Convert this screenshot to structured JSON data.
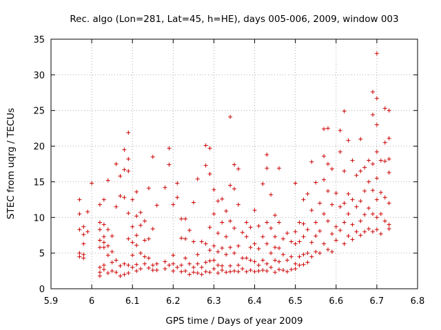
{
  "chart_data": {
    "type": "scatter",
    "title": "Rec. algo (Lon=281, Lat=45, h=HE), days 005-006, 2009, window 003",
    "xlabel": "GPS time / Days of year 2009",
    "ylabel": "STEC from uqrg / TECUs",
    "xlim": [
      5.9,
      6.8
    ],
    "ylim": [
      0,
      35
    ],
    "xticks": [
      "5.9",
      "6",
      "6.1",
      "6.2",
      "6.3",
      "6.4",
      "6.5",
      "6.6",
      "6.7",
      "6.8"
    ],
    "yticks": [
      "0",
      "5",
      "10",
      "15",
      "20",
      "25",
      "30",
      "35"
    ],
    "grid": true,
    "marker": "plus",
    "color": "#cc0000",
    "points": [
      [
        5.97,
        12.5
      ],
      [
        5.97,
        10.5
      ],
      [
        5.97,
        8.3
      ],
      [
        5.97,
        5.0
      ],
      [
        5.97,
        4.5
      ],
      [
        5.98,
        8.7
      ],
      [
        5.98,
        7.6
      ],
      [
        5.98,
        6.3
      ],
      [
        5.98,
        4.3
      ],
      [
        5.98,
        4.8
      ],
      [
        5.99,
        10.8
      ],
      [
        5.99,
        8.0
      ],
      [
        6.0,
        14.8
      ],
      [
        6.02,
        11.8
      ],
      [
        6.02,
        9.3
      ],
      [
        6.02,
        8.3
      ],
      [
        6.02,
        6.8
      ],
      [
        6.02,
        5.8
      ],
      [
        6.02,
        3.0
      ],
      [
        6.02,
        2.3
      ],
      [
        6.02,
        1.8
      ],
      [
        6.03,
        12.5
      ],
      [
        6.03,
        9.0
      ],
      [
        6.03,
        7.3
      ],
      [
        6.03,
        6.5
      ],
      [
        6.03,
        5.8
      ],
      [
        6.03,
        3.3
      ],
      [
        6.03,
        2.7
      ],
      [
        6.04,
        15.2
      ],
      [
        6.04,
        8.3
      ],
      [
        6.04,
        6.0
      ],
      [
        6.04,
        4.7
      ],
      [
        6.04,
        2.2
      ],
      [
        6.05,
        7.4
      ],
      [
        6.05,
        5.2
      ],
      [
        6.05,
        3.7
      ],
      [
        6.05,
        2.5
      ],
      [
        6.06,
        17.5
      ],
      [
        6.06,
        11.5
      ],
      [
        6.06,
        4.0
      ],
      [
        6.06,
        2.3
      ],
      [
        6.07,
        15.8
      ],
      [
        6.07,
        13.0
      ],
      [
        6.07,
        3.2
      ],
      [
        6.07,
        1.8
      ],
      [
        6.08,
        19.5
      ],
      [
        6.08,
        16.7
      ],
      [
        6.08,
        12.8
      ],
      [
        6.08,
        3.5
      ],
      [
        6.08,
        2.0
      ],
      [
        6.09,
        21.9
      ],
      [
        6.09,
        18.2
      ],
      [
        6.09,
        16.5
      ],
      [
        6.09,
        10.6
      ],
      [
        6.09,
        7.0
      ],
      [
        6.09,
        3.3
      ],
      [
        6.09,
        2.2
      ],
      [
        6.1,
        12.5
      ],
      [
        6.1,
        8.7
      ],
      [
        6.1,
        6.5
      ],
      [
        6.1,
        4.7
      ],
      [
        6.1,
        3.0
      ],
      [
        6.11,
        13.6
      ],
      [
        6.11,
        10.2
      ],
      [
        6.11,
        7.5
      ],
      [
        6.11,
        6.1
      ],
      [
        6.11,
        3.4
      ],
      [
        6.11,
        2.5
      ],
      [
        6.12,
        10.7
      ],
      [
        6.12,
        8.9
      ],
      [
        6.12,
        5.0
      ],
      [
        6.12,
        2.8
      ],
      [
        6.13,
        9.5
      ],
      [
        6.13,
        6.8
      ],
      [
        6.13,
        4.5
      ],
      [
        6.13,
        3.5
      ],
      [
        6.14,
        14.1
      ],
      [
        6.14,
        7.0
      ],
      [
        6.14,
        4.3
      ],
      [
        6.14,
        2.9
      ],
      [
        6.15,
        18.5
      ],
      [
        6.15,
        8.4
      ],
      [
        6.15,
        3.3
      ],
      [
        6.15,
        2.6
      ],
      [
        6.16,
        11.7
      ],
      [
        6.16,
        3.5
      ],
      [
        6.16,
        2.6
      ],
      [
        6.18,
        14.2
      ],
      [
        6.18,
        3.8
      ],
      [
        6.18,
        2.8
      ],
      [
        6.19,
        19.7
      ],
      [
        6.19,
        17.4
      ],
      [
        6.19,
        3.3
      ],
      [
        6.2,
        11.8
      ],
      [
        6.2,
        4.7
      ],
      [
        6.2,
        3.5
      ],
      [
        6.2,
        2.5
      ],
      [
        6.21,
        14.8
      ],
      [
        6.21,
        12.8
      ],
      [
        6.21,
        3.0
      ],
      [
        6.22,
        9.8
      ],
      [
        6.22,
        7.1
      ],
      [
        6.22,
        3.3
      ],
      [
        6.22,
        2.4
      ],
      [
        6.23,
        9.8
      ],
      [
        6.23,
        7.0
      ],
      [
        6.23,
        4.3
      ],
      [
        6.23,
        2.5
      ],
      [
        6.24,
        8.2
      ],
      [
        6.24,
        3.5
      ],
      [
        6.24,
        2.0
      ],
      [
        6.25,
        12.1
      ],
      [
        6.25,
        6.6
      ],
      [
        6.25,
        3.0
      ],
      [
        6.25,
        2.3
      ],
      [
        6.26,
        15.4
      ],
      [
        6.26,
        4.8
      ],
      [
        6.26,
        3.5
      ],
      [
        6.26,
        2.2
      ],
      [
        6.27,
        6.6
      ],
      [
        6.27,
        3.0
      ],
      [
        6.27,
        2.0
      ],
      [
        6.28,
        20.1
      ],
      [
        6.28,
        17.3
      ],
      [
        6.28,
        6.3
      ],
      [
        6.28,
        3.7
      ],
      [
        6.28,
        2.4
      ],
      [
        6.29,
        19.7
      ],
      [
        6.29,
        16.1
      ],
      [
        6.29,
        8.6
      ],
      [
        6.29,
        5.4
      ],
      [
        6.29,
        3.9
      ],
      [
        6.29,
        2.3
      ],
      [
        6.3,
        13.9
      ],
      [
        6.3,
        10.5
      ],
      [
        6.3,
        6.0
      ],
      [
        6.3,
        4.0
      ],
      [
        6.3,
        2.8
      ],
      [
        6.31,
        12.3
      ],
      [
        6.31,
        7.8
      ],
      [
        6.31,
        5.2
      ],
      [
        6.31,
        3.3
      ],
      [
        6.31,
        2.2
      ],
      [
        6.32,
        12.6
      ],
      [
        6.32,
        9.3
      ],
      [
        6.32,
        5.7
      ],
      [
        6.32,
        3.2
      ],
      [
        6.32,
        2.6
      ],
      [
        6.33,
        10.9
      ],
      [
        6.33,
        7.3
      ],
      [
        6.33,
        4.8
      ],
      [
        6.33,
        2.3
      ],
      [
        6.34,
        24.1
      ],
      [
        6.34,
        14.5
      ],
      [
        6.34,
        9.5
      ],
      [
        6.34,
        5.8
      ],
      [
        6.34,
        3.2
      ],
      [
        6.34,
        2.4
      ],
      [
        6.35,
        17.4
      ],
      [
        6.35,
        14.0
      ],
      [
        6.35,
        8.5
      ],
      [
        6.35,
        5.0
      ],
      [
        6.35,
        2.5
      ],
      [
        6.36,
        16.8
      ],
      [
        6.36,
        11.8
      ],
      [
        6.36,
        6.0
      ],
      [
        6.36,
        3.3
      ],
      [
        6.36,
        2.4
      ],
      [
        6.37,
        7.9
      ],
      [
        6.37,
        4.3
      ],
      [
        6.37,
        2.8
      ],
      [
        6.38,
        9.3
      ],
      [
        6.38,
        7.3
      ],
      [
        6.38,
        4.3
      ],
      [
        6.38,
        2.4
      ],
      [
        6.39,
        8.6
      ],
      [
        6.39,
        5.8
      ],
      [
        6.39,
        4.0
      ],
      [
        6.39,
        2.6
      ],
      [
        6.4,
        11.0
      ],
      [
        6.4,
        6.3
      ],
      [
        6.4,
        3.8
      ],
      [
        6.4,
        2.4
      ],
      [
        6.41,
        8.8
      ],
      [
        6.41,
        5.6
      ],
      [
        6.41,
        3.3
      ],
      [
        6.41,
        2.5
      ],
      [
        6.42,
        14.7
      ],
      [
        6.42,
        7.3
      ],
      [
        6.42,
        4.0
      ],
      [
        6.42,
        2.6
      ],
      [
        6.43,
        18.8
      ],
      [
        6.43,
        16.9
      ],
      [
        6.43,
        9.3
      ],
      [
        6.43,
        6.3
      ],
      [
        6.43,
        3.5
      ],
      [
        6.43,
        2.5
      ],
      [
        6.44,
        13.2
      ],
      [
        6.44,
        8.5
      ],
      [
        6.44,
        5.0
      ],
      [
        6.44,
        3.0
      ],
      [
        6.45,
        10.3
      ],
      [
        6.45,
        7.3
      ],
      [
        6.45,
        5.8
      ],
      [
        6.45,
        4.0
      ],
      [
        6.45,
        2.3
      ],
      [
        6.46,
        16.9
      ],
      [
        6.46,
        9.3
      ],
      [
        6.46,
        5.7
      ],
      [
        6.46,
        3.8
      ],
      [
        6.46,
        2.7
      ],
      [
        6.47,
        7.0
      ],
      [
        6.47,
        4.8
      ],
      [
        6.47,
        2.6
      ],
      [
        6.48,
        7.8
      ],
      [
        6.48,
        4.0
      ],
      [
        6.48,
        2.4
      ],
      [
        6.49,
        6.6
      ],
      [
        6.49,
        4.5
      ],
      [
        6.49,
        2.7
      ],
      [
        6.5,
        14.8
      ],
      [
        6.5,
        8.0
      ],
      [
        6.5,
        6.3
      ],
      [
        6.5,
        3.5
      ],
      [
        6.5,
        2.8
      ],
      [
        6.51,
        9.3
      ],
      [
        6.51,
        6.6
      ],
      [
        6.51,
        4.5
      ],
      [
        6.51,
        3.3
      ],
      [
        6.52,
        12.5
      ],
      [
        6.52,
        9.1
      ],
      [
        6.52,
        7.3
      ],
      [
        6.52,
        4.8
      ],
      [
        6.52,
        3.4
      ],
      [
        6.53,
        13.3
      ],
      [
        6.53,
        8.3
      ],
      [
        6.53,
        5.0
      ],
      [
        6.53,
        3.7
      ],
      [
        6.54,
        17.8
      ],
      [
        6.54,
        11.0
      ],
      [
        6.54,
        6.5
      ],
      [
        6.54,
        4.5
      ],
      [
        6.55,
        14.9
      ],
      [
        6.55,
        9.3
      ],
      [
        6.55,
        7.4
      ],
      [
        6.55,
        5.2
      ],
      [
        6.56,
        12.0
      ],
      [
        6.56,
        8.1
      ],
      [
        6.56,
        5.0
      ],
      [
        6.57,
        22.4
      ],
      [
        6.57,
        18.6
      ],
      [
        6.57,
        15.3
      ],
      [
        6.57,
        10.5
      ],
      [
        6.57,
        6.3
      ],
      [
        6.58,
        22.5
      ],
      [
        6.58,
        17.5
      ],
      [
        6.58,
        13.7
      ],
      [
        6.58,
        9.5
      ],
      [
        6.58,
        5.5
      ],
      [
        6.59,
        16.8
      ],
      [
        6.59,
        11.8
      ],
      [
        6.59,
        7.7
      ],
      [
        6.59,
        5.2
      ],
      [
        6.6,
        13.4
      ],
      [
        6.6,
        8.7
      ],
      [
        6.6,
        6.8
      ],
      [
        6.61,
        22.2
      ],
      [
        6.61,
        19.2
      ],
      [
        6.61,
        11.5
      ],
      [
        6.61,
        8.2
      ],
      [
        6.62,
        24.9
      ],
      [
        6.62,
        16.5
      ],
      [
        6.62,
        12.0
      ],
      [
        6.62,
        9.3
      ],
      [
        6.62,
        6.3
      ],
      [
        6.63,
        20.8
      ],
      [
        6.63,
        13.3
      ],
      [
        6.63,
        10.5
      ],
      [
        6.63,
        7.4
      ],
      [
        6.64,
        18.0
      ],
      [
        6.64,
        12.5
      ],
      [
        6.64,
        9.0
      ],
      [
        6.64,
        6.9
      ],
      [
        6.65,
        15.9
      ],
      [
        6.65,
        11.5
      ],
      [
        6.65,
        8.0
      ],
      [
        6.66,
        21.0
      ],
      [
        6.66,
        16.5
      ],
      [
        6.66,
        12.3
      ],
      [
        6.66,
        9.5
      ],
      [
        6.66,
        7.5
      ],
      [
        6.67,
        17.0
      ],
      [
        6.67,
        13.7
      ],
      [
        6.67,
        10.4
      ],
      [
        6.67,
        8.0
      ],
      [
        6.68,
        18.0
      ],
      [
        6.68,
        15.0
      ],
      [
        6.68,
        11.3
      ],
      [
        6.68,
        8.4
      ],
      [
        6.69,
        27.6
      ],
      [
        6.69,
        24.4
      ],
      [
        6.69,
        17.5
      ],
      [
        6.69,
        13.8
      ],
      [
        6.69,
        10.5
      ],
      [
        6.69,
        8.0
      ],
      [
        6.7,
        33.0
      ],
      [
        6.7,
        26.7
      ],
      [
        6.7,
        23.0
      ],
      [
        6.7,
        19.2
      ],
      [
        6.7,
        15.5
      ],
      [
        6.7,
        12.5
      ],
      [
        6.7,
        10.0
      ],
      [
        6.7,
        8.3
      ],
      [
        6.71,
        18.0
      ],
      [
        6.71,
        13.5
      ],
      [
        6.71,
        10.5
      ],
      [
        6.71,
        7.7
      ],
      [
        6.72,
        25.3
      ],
      [
        6.72,
        20.5
      ],
      [
        6.72,
        17.9
      ],
      [
        6.72,
        12.8
      ],
      [
        6.72,
        9.5
      ],
      [
        6.73,
        25.0
      ],
      [
        6.73,
        21.1
      ],
      [
        6.73,
        18.2
      ],
      [
        6.73,
        16.3
      ],
      [
        6.73,
        12.0
      ],
      [
        6.73,
        9.0
      ],
      [
        6.73,
        8.4
      ]
    ]
  }
}
